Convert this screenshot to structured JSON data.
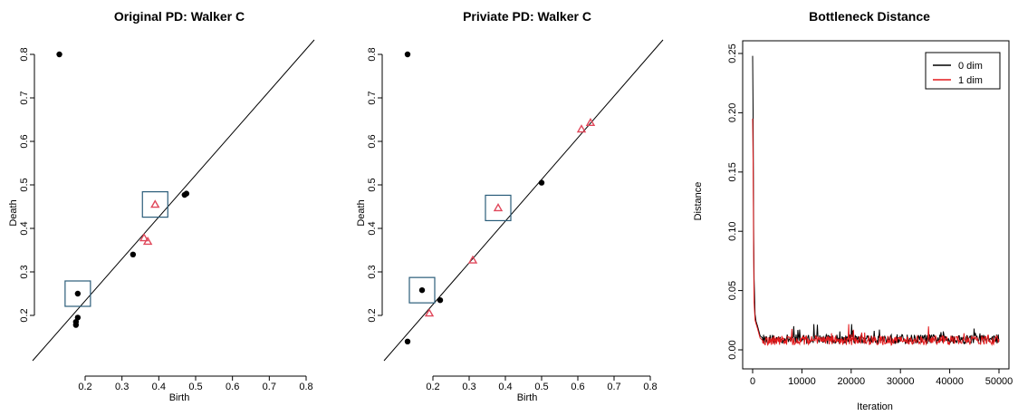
{
  "colors": {
    "dim0": "#000000",
    "dim1": "#e41a1c",
    "triangle": "#e0475a",
    "box": "#2b5d7a",
    "axis": "#000000"
  },
  "chart_data": [
    {
      "type": "scatter",
      "title": "Original PD: Walker C",
      "xlabel": "Birth",
      "ylabel": "Death",
      "xlim": [
        0.1,
        0.8
      ],
      "ylim": [
        0.12,
        0.82
      ],
      "xticks": [
        0.2,
        0.3,
        0.4,
        0.5,
        0.6,
        0.7,
        0.8
      ],
      "yticks": [
        0.2,
        0.3,
        0.4,
        0.5,
        0.6,
        0.7,
        0.8
      ],
      "diagonal": true,
      "series": [
        {
          "marker": "dot",
          "points": [
            [
              0.13,
              0.8
            ],
            [
              0.18,
              0.25
            ],
            [
              0.18,
              0.195
            ],
            [
              0.175,
              0.185
            ],
            [
              0.175,
              0.178
            ],
            [
              0.33,
              0.34
            ],
            [
              0.47,
              0.477
            ],
            [
              0.475,
              0.48
            ]
          ]
        },
        {
          "marker": "triangle",
          "points": [
            [
              0.39,
              0.455
            ],
            [
              0.36,
              0.378
            ],
            [
              0.37,
              0.37
            ]
          ]
        }
      ],
      "boxes": [
        [
          0.39,
          0.455
        ],
        [
          0.18,
          0.25
        ]
      ]
    },
    {
      "type": "scatter",
      "title": "Priviate PD: Walker C",
      "xlabel": "Birth",
      "ylabel": "Death",
      "xlim": [
        0.1,
        0.8
      ],
      "ylim": [
        0.12,
        0.82
      ],
      "xticks": [
        0.2,
        0.3,
        0.4,
        0.5,
        0.6,
        0.7,
        0.8
      ],
      "yticks": [
        0.2,
        0.3,
        0.4,
        0.5,
        0.6,
        0.7,
        0.8
      ],
      "diagonal": true,
      "series": [
        {
          "marker": "dot",
          "points": [
            [
              0.13,
              0.8
            ],
            [
              0.13,
              0.14
            ],
            [
              0.17,
              0.258
            ],
            [
              0.22,
              0.235
            ],
            [
              0.5,
              0.505
            ]
          ]
        },
        {
          "marker": "triangle",
          "points": [
            [
              0.19,
              0.205
            ],
            [
              0.31,
              0.327
            ],
            [
              0.38,
              0.447
            ],
            [
              0.61,
              0.628
            ],
            [
              0.635,
              0.643
            ]
          ]
        }
      ],
      "boxes": [
        [
          0.38,
          0.447
        ],
        [
          0.17,
          0.258
        ]
      ]
    },
    {
      "type": "line",
      "title": "Bottleneck Distance",
      "xlabel": "Iteration",
      "ylabel": "Distance",
      "xlim": [
        0,
        50000
      ],
      "ylim": [
        0,
        0.25
      ],
      "xticks": [
        0,
        10000,
        20000,
        30000,
        40000,
        50000
      ],
      "yticks": [
        0.0,
        0.05,
        0.1,
        0.15,
        0.2,
        0.25
      ],
      "legend_position": "top-right",
      "series": [
        {
          "name": "0 dim",
          "color": "#000000",
          "x": [
            0,
            100,
            200,
            300,
            500,
            700,
            1000,
            1500,
            2000,
            3000,
            5000,
            10000,
            20000,
            30000,
            40000,
            50000
          ],
          "y": [
            0.248,
            0.2,
            0.105,
            0.06,
            0.03,
            0.024,
            0.02,
            0.012,
            0.01,
            0.009,
            0.009,
            0.009,
            0.009,
            0.009,
            0.009,
            0.009
          ]
        },
        {
          "name": "1 dim",
          "color": "#e41a1c",
          "x": [
            0,
            100,
            200,
            300,
            500,
            700,
            1000,
            1500,
            2000,
            3000,
            5000,
            10000,
            20000,
            30000,
            40000,
            50000
          ],
          "y": [
            0.195,
            0.16,
            0.08,
            0.04,
            0.025,
            0.022,
            0.018,
            0.01,
            0.008,
            0.007,
            0.008,
            0.008,
            0.008,
            0.008,
            0.008,
            0.008
          ]
        }
      ]
    }
  ]
}
